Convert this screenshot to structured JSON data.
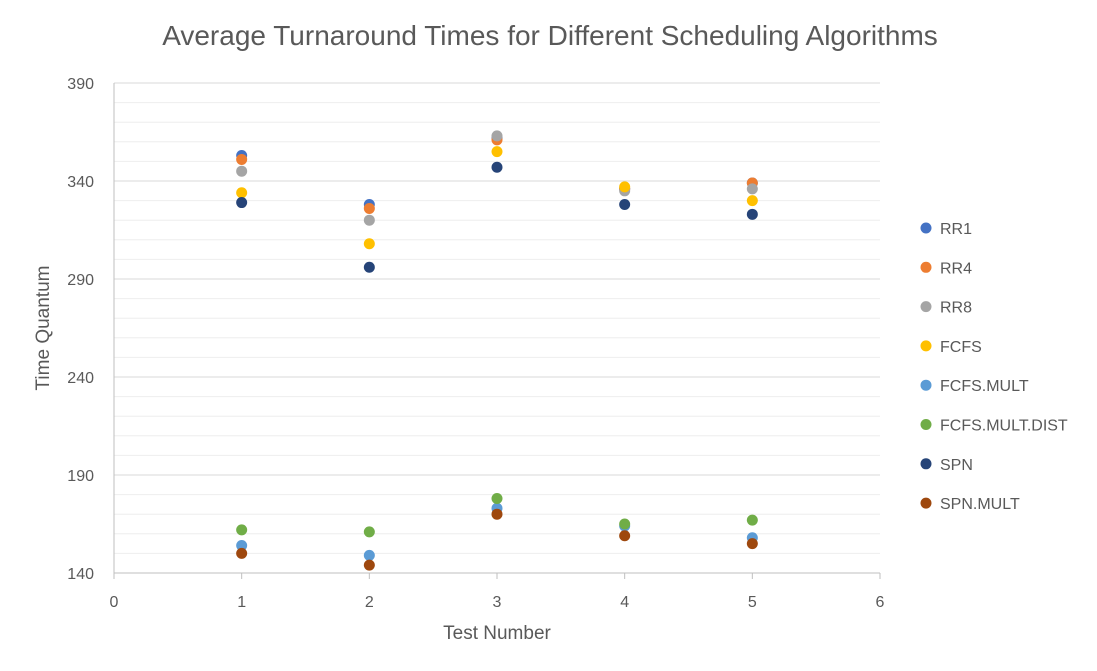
{
  "chart_data": {
    "type": "scatter",
    "title": "Average Turnaround Times for Different Scheduling Algorithms",
    "xlabel": "Test Number",
    "ylabel": "Time Quantum",
    "xlim": [
      0,
      6
    ],
    "ylim": [
      140,
      390
    ],
    "x_ticks": [
      0,
      1,
      2,
      3,
      4,
      5,
      6
    ],
    "y_ticks": [
      140,
      190,
      240,
      290,
      340,
      390
    ],
    "grid": true,
    "legend_position": "right",
    "series": [
      {
        "name": "RR1",
        "color": "#4472C4",
        "x": [
          1,
          2,
          3,
          4,
          5
        ],
        "y": [
          353,
          328,
          362,
          336,
          339
        ]
      },
      {
        "name": "RR4",
        "color": "#ED7D31",
        "x": [
          1,
          2,
          3,
          4,
          5
        ],
        "y": [
          351,
          326,
          361,
          336,
          339
        ]
      },
      {
        "name": "RR8",
        "color": "#A5A5A5",
        "x": [
          1,
          2,
          3,
          4,
          5
        ],
        "y": [
          345,
          320,
          363,
          335,
          336
        ]
      },
      {
        "name": "FCFS",
        "color": "#FFC000",
        "x": [
          1,
          2,
          3,
          4,
          5
        ],
        "y": [
          334,
          308,
          355,
          337,
          330
        ]
      },
      {
        "name": "FCFS.MULT",
        "color": "#5B9BD5",
        "x": [
          1,
          2,
          3,
          4,
          5
        ],
        "y": [
          154,
          149,
          173,
          164,
          158
        ]
      },
      {
        "name": "FCFS.MULT.DIST",
        "color": "#70AD47",
        "x": [
          1,
          2,
          3,
          4,
          5
        ],
        "y": [
          162,
          161,
          178,
          165,
          167
        ]
      },
      {
        "name": "SPN",
        "color": "#264478",
        "x": [
          1,
          2,
          3,
          4,
          5
        ],
        "y": [
          329,
          296,
          347,
          328,
          323
        ]
      },
      {
        "name": "SPN.MULT",
        "color": "#9E480E",
        "x": [
          1,
          2,
          3,
          4,
          5
        ],
        "y": [
          150,
          144,
          170,
          159,
          155
        ]
      }
    ]
  }
}
